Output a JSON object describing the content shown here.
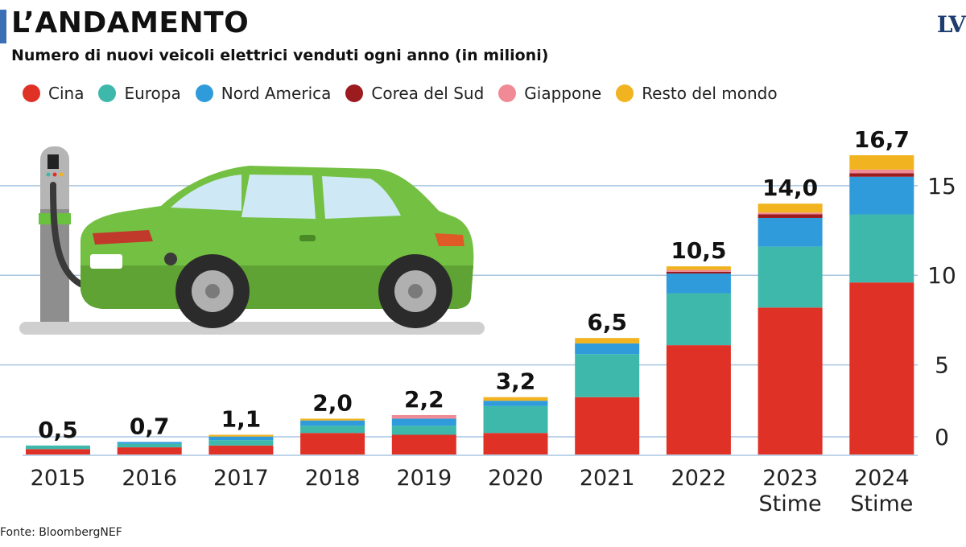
{
  "header": {
    "title": "L’ANDAMENTO",
    "subtitle": "Numero di nuovi veicoli elettrici venduti ogni anno (in milioni)",
    "logo": "LV"
  },
  "footer": {
    "source": "Fonte: BloombergNEF"
  },
  "colors": {
    "accent_bar": "#3a6fb5",
    "grid": "#a9c6e0",
    "axis_text": "#222222"
  },
  "illustration": {
    "icon": "electric-car-charging-icon"
  },
  "chart_data": {
    "type": "bar",
    "stacked": true,
    "categories": [
      "2015",
      "2016",
      "2017",
      "2018",
      "2019",
      "2020",
      "2021",
      "2022",
      "2023\nStime",
      "2024\nStime"
    ],
    "totals_labels": [
      "0,5",
      "0,7",
      "1,1",
      "2,0",
      "2,2",
      "3,2",
      "6,5",
      "10,5",
      "14,0",
      "16,7"
    ],
    "series": [
      {
        "name": "Cina",
        "color": "#e03127",
        "values": [
          0.3,
          0.4,
          0.5,
          1.2,
          1.1,
          1.2,
          3.2,
          6.1,
          8.2,
          9.6
        ]
      },
      {
        "name": "Europa",
        "color": "#3eb8aa",
        "values": [
          0.2,
          0.2,
          0.3,
          0.4,
          0.5,
          1.5,
          2.4,
          2.9,
          3.4,
          3.8
        ]
      },
      {
        "name": "Nord America",
        "color": "#2f9bdb",
        "values": [
          0.0,
          0.1,
          0.2,
          0.3,
          0.4,
          0.3,
          0.6,
          1.1,
          1.6,
          2.1
        ]
      },
      {
        "name": "Corea del Sud",
        "color": "#9b1b1f",
        "values": [
          0.0,
          0.0,
          0.0,
          0.0,
          0.0,
          0.0,
          0.0,
          0.1,
          0.2,
          0.2
        ]
      },
      {
        "name": "Giappone",
        "color": "#f08a95",
        "values": [
          0.0,
          0.0,
          0.0,
          0.0,
          0.2,
          0.0,
          0.0,
          0.1,
          0.1,
          0.2
        ]
      },
      {
        "name": "Resto del mondo",
        "color": "#f2b320",
        "values": [
          0.0,
          0.0,
          0.1,
          0.1,
          0.0,
          0.2,
          0.3,
          0.2,
          0.5,
          0.8
        ]
      }
    ],
    "ylim": [
      0,
      16.7
    ],
    "yticks": [
      0,
      5,
      10,
      15
    ],
    "grid": true,
    "y_axis_side": "right",
    "legend_position": "top-left"
  }
}
